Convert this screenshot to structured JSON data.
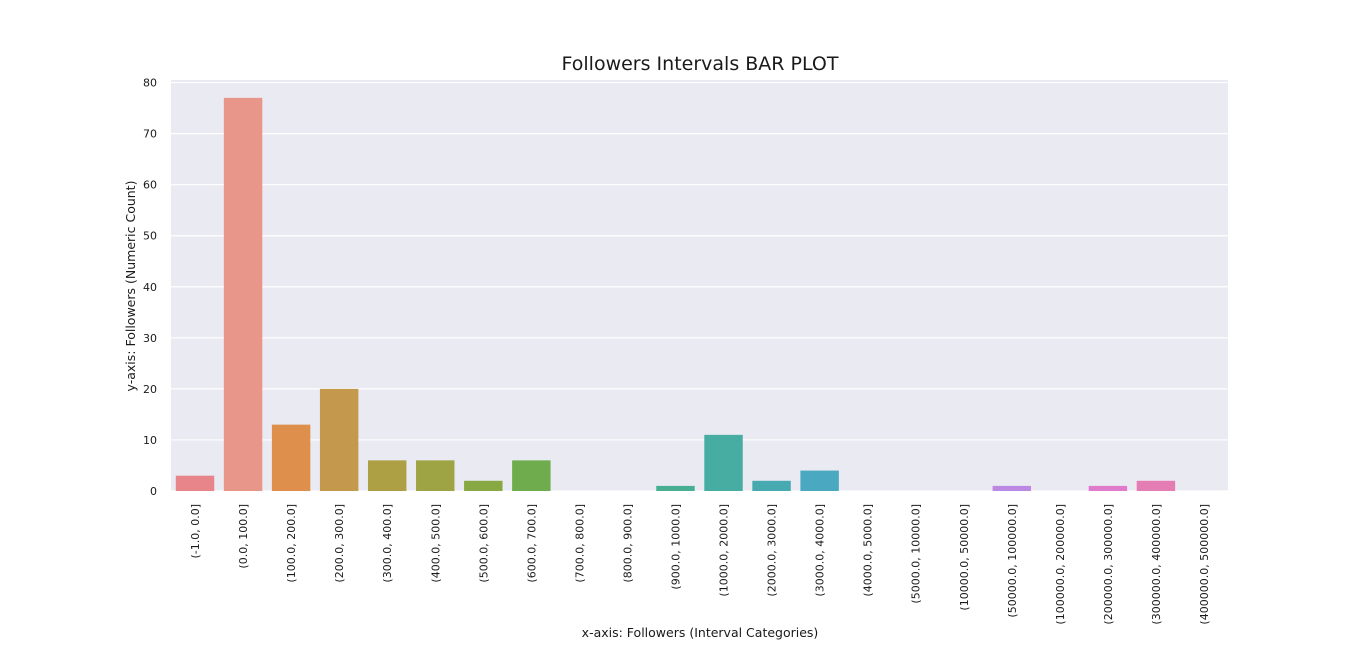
{
  "chart_data": {
    "type": "bar",
    "title": "Followers Intervals BAR PLOT",
    "xlabel": "x-axis: Followers (Interval Categories)",
    "ylabel": "y-axis: Followers (Numeric Count)",
    "ylim": [
      0,
      80
    ],
    "yticks": [
      "0",
      "10",
      "20",
      "30",
      "40",
      "50",
      "60",
      "70",
      "80"
    ],
    "grid": true,
    "background_color": "#eaeaf2",
    "categories": [
      "(-1.0, 0.0]",
      "(0.0, 100.0]",
      "(100.0, 200.0]",
      "(200.0, 300.0]",
      "(300.0, 400.0]",
      "(400.0, 500.0]",
      "(500.0, 600.0]",
      "(600.0, 700.0]",
      "(700.0, 800.0]",
      "(800.0, 900.0]",
      "(900.0, 1000.0]",
      "(1000.0, 2000.0]",
      "(2000.0, 3000.0]",
      "(3000.0, 4000.0]",
      "(4000.0, 5000.0]",
      "(5000.0, 10000.0]",
      "(10000.0, 50000.0]",
      "(50000.0, 100000.0]",
      "(100000.0, 200000.0]",
      "(200000.0, 300000.0]",
      "(300000.0, 400000.0]",
      "(400000.0, 500000.0]"
    ],
    "values": [
      3,
      77,
      13,
      20,
      6,
      6,
      2,
      6,
      0,
      0,
      1,
      11,
      2,
      4,
      0,
      0,
      0,
      1,
      0,
      1,
      2,
      0
    ],
    "colors": [
      "#e8858b",
      "#e8968a",
      "#df8f4c",
      "#c4994d",
      "#ad9f43",
      "#9ea344",
      "#87a843",
      "#6eac4d",
      "#52af63",
      "#4ab07c",
      "#48ae91",
      "#47aca2",
      "#46aab0",
      "#4aa8c1",
      "#55a2d4",
      "#7a98e0",
      "#9d8ee6",
      "#bb88e4",
      "#d681dc",
      "#e07bcc",
      "#e47db4",
      "#e8839d"
    ]
  }
}
